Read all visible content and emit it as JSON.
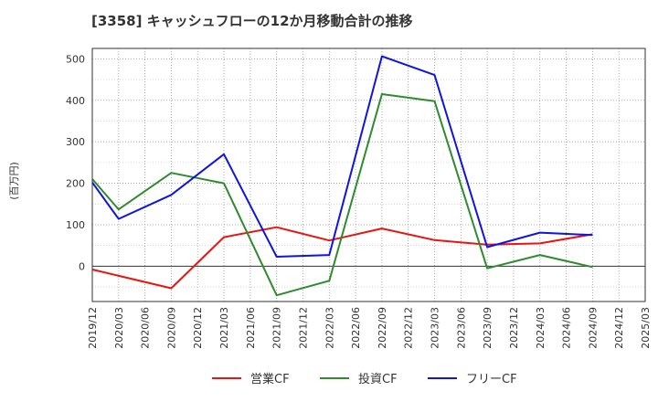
{
  "chart_data": {
    "type": "line",
    "title": "[3358]  キャッシュフローの12か月移動合計の推移",
    "ylabel": "(百万円)",
    "xlabel": "",
    "ylim": [
      -85,
      525
    ],
    "yticks": [
      0,
      100,
      200,
      300,
      400,
      500
    ],
    "x_ticks": [
      "2019/12",
      "2020/03",
      "2020/06",
      "2020/09",
      "2020/12",
      "2021/03",
      "2021/06",
      "2021/09",
      "2021/12",
      "2022/03",
      "2022/06",
      "2022/09",
      "2022/12",
      "2023/03",
      "2023/06",
      "2023/09",
      "2023/12",
      "2024/03",
      "2024/06",
      "2024/09",
      "2024/12",
      "2025/03"
    ],
    "grid": true,
    "legend_position": "bottom",
    "series": [
      {
        "name": "営業CF",
        "color": "#e8140f",
        "points": [
          {
            "x": "2019/12",
            "y": -8
          },
          {
            "x": "2020/09",
            "y": -53
          },
          {
            "x": "2021/03",
            "y": 70
          },
          {
            "x": "2021/09",
            "y": 94
          },
          {
            "x": "2022/03",
            "y": 62
          },
          {
            "x": "2022/09",
            "y": 91
          },
          {
            "x": "2023/03",
            "y": 63
          },
          {
            "x": "2023/09",
            "y": 52
          },
          {
            "x": "2024/03",
            "y": 55
          },
          {
            "x": "2024/09",
            "y": 77
          }
        ]
      },
      {
        "name": "投資CF",
        "color": "#2e8b2e",
        "points": [
          {
            "x": "2019/12",
            "y": 210
          },
          {
            "x": "2020/03",
            "y": 137
          },
          {
            "x": "2020/09",
            "y": 225
          },
          {
            "x": "2021/03",
            "y": 200
          },
          {
            "x": "2021/09",
            "y": -70
          },
          {
            "x": "2022/03",
            "y": -35
          },
          {
            "x": "2022/09",
            "y": 415
          },
          {
            "x": "2023/03",
            "y": 398
          },
          {
            "x": "2023/09",
            "y": -5
          },
          {
            "x": "2024/03",
            "y": 27
          },
          {
            "x": "2024/09",
            "y": -2
          }
        ]
      },
      {
        "name": "フリーCF",
        "color": "#0f14e0",
        "points": [
          {
            "x": "2019/12",
            "y": 202
          },
          {
            "x": "2020/03",
            "y": 114
          },
          {
            "x": "2020/09",
            "y": 172
          },
          {
            "x": "2021/03",
            "y": 270
          },
          {
            "x": "2021/09",
            "y": 23
          },
          {
            "x": "2022/03",
            "y": 27
          },
          {
            "x": "2022/09",
            "y": 506
          },
          {
            "x": "2023/03",
            "y": 461
          },
          {
            "x": "2023/09",
            "y": 46
          },
          {
            "x": "2024/03",
            "y": 81
          },
          {
            "x": "2024/09",
            "y": 75
          }
        ]
      }
    ]
  }
}
